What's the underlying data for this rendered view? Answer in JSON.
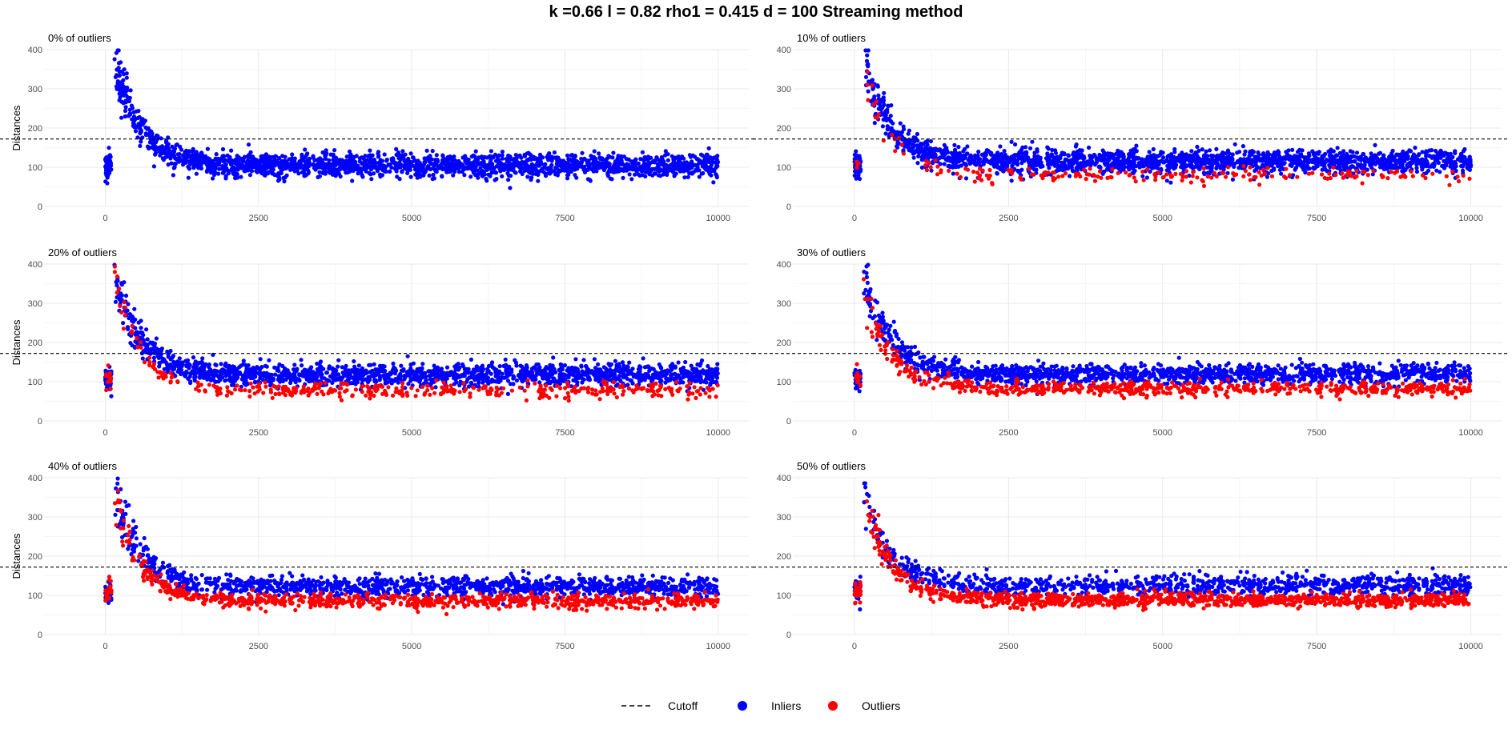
{
  "title": "k =0.66 l = 0.82 rho1 = 0.415 d = 100 Streaming method",
  "legend": {
    "placement": "bottom",
    "items": [
      {
        "label": "Cutoff",
        "style": "dashed-line",
        "color": "#000000"
      },
      {
        "label": "Inliers",
        "style": "point",
        "color": "#0000FF"
      },
      {
        "label": "Outliers",
        "style": "point",
        "color": "#FF0000"
      }
    ]
  },
  "chart_data": [
    {
      "type": "scatter",
      "subtitle": "0% of outliers",
      "outlier_fraction": 0.0,
      "ylabel": "Distances",
      "xlim": [
        -1000,
        10500
      ],
      "ylim": [
        0,
        400
      ],
      "xticks": [
        "0",
        "2500",
        "5000",
        "7500",
        "10000"
      ],
      "yticks": [
        "0",
        "100",
        "200",
        "300",
        "400"
      ],
      "grid": true,
      "cutoff": 172,
      "series": [
        {
          "name": "Inliers",
          "color": "#0000FF",
          "summary": {
            "start_cluster": {
              "x": [
                0,
                100
              ],
              "y_center": 105
            },
            "peak": {
              "x": 200,
              "y": 390
            },
            "decay_to": {
              "x": 1500,
              "y": 125
            },
            "plateau": {
              "x": [
                1500,
                10000
              ],
              "y_center": 105,
              "spread": 30
            }
          }
        },
        {
          "name": "Outliers",
          "color": "#FF0000",
          "summary": null
        }
      ]
    },
    {
      "type": "scatter",
      "subtitle": "10% of outliers",
      "outlier_fraction": 0.1,
      "ylabel": "",
      "xlim": [
        -1000,
        10500
      ],
      "ylim": [
        0,
        400
      ],
      "xticks": [
        "0",
        "2500",
        "5000",
        "7500",
        "10000"
      ],
      "yticks": [
        "0",
        "100",
        "200",
        "300",
        "400"
      ],
      "grid": true,
      "cutoff": 172,
      "series": [
        {
          "name": "Inliers",
          "color": "#0000FF",
          "summary": {
            "start_cluster": {
              "x": [
                0,
                100
              ],
              "y_center": 105
            },
            "peak": {
              "x": 200,
              "y": 390
            },
            "decay_to": {
              "x": 1500,
              "y": 125
            },
            "plateau": {
              "x": [
                1500,
                10000
              ],
              "y_center": 115,
              "spread": 30
            }
          }
        },
        {
          "name": "Outliers",
          "color": "#FF0000",
          "summary": {
            "peak": {
              "x": 200,
              "y": 370
            },
            "plateau": {
              "x": [
                1000,
                10000
              ],
              "y_center": 80,
              "spread": 18
            }
          }
        }
      ]
    },
    {
      "type": "scatter",
      "subtitle": "20% of outliers",
      "outlier_fraction": 0.2,
      "ylabel": "Distances",
      "xlim": [
        -1000,
        10500
      ],
      "ylim": [
        0,
        400
      ],
      "xticks": [
        "0",
        "2500",
        "5000",
        "7500",
        "10000"
      ],
      "yticks": [
        "0",
        "100",
        "200",
        "300",
        "400"
      ],
      "grid": true,
      "cutoff": 172,
      "series": [
        {
          "name": "Inliers",
          "color": "#0000FF",
          "summary": {
            "start_cluster": {
              "x": [
                0,
                100
              ],
              "y_center": 105
            },
            "peak": {
              "x": 200,
              "y": 390
            },
            "decay_to": {
              "x": 1500,
              "y": 130
            },
            "plateau": {
              "x": [
                1500,
                10000
              ],
              "y_center": 118,
              "spread": 28
            }
          }
        },
        {
          "name": "Outliers",
          "color": "#FF0000",
          "summary": {
            "peak": {
              "x": 200,
              "y": 390
            },
            "plateau": {
              "x": [
                1000,
                10000
              ],
              "y_center": 78,
              "spread": 18
            }
          }
        }
      ]
    },
    {
      "type": "scatter",
      "subtitle": "30% of outliers",
      "outlier_fraction": 0.3,
      "ylabel": "",
      "xlim": [
        -1000,
        10500
      ],
      "ylim": [
        0,
        400
      ],
      "xticks": [
        "0",
        "2500",
        "5000",
        "7500",
        "10000"
      ],
      "yticks": [
        "0",
        "100",
        "200",
        "300",
        "400"
      ],
      "grid": true,
      "cutoff": 172,
      "series": [
        {
          "name": "Inliers",
          "color": "#0000FF",
          "summary": {
            "start_cluster": {
              "x": [
                0,
                100
              ],
              "y_center": 110
            },
            "peak": {
              "x": 200,
              "y": 390
            },
            "decay_to": {
              "x": 1500,
              "y": 135
            },
            "plateau": {
              "x": [
                1500,
                10000
              ],
              "y_center": 120,
              "spread": 26
            }
          }
        },
        {
          "name": "Outliers",
          "color": "#FF0000",
          "summary": {
            "peak": {
              "x": 200,
              "y": 350
            },
            "plateau": {
              "x": [
                1000,
                10000
              ],
              "y_center": 82,
              "spread": 18
            }
          }
        }
      ]
    },
    {
      "type": "scatter",
      "subtitle": "40% of outliers",
      "outlier_fraction": 0.4,
      "ylabel": "Distances",
      "xlim": [
        -1000,
        10500
      ],
      "ylim": [
        0,
        400
      ],
      "xticks": [
        "0",
        "2500",
        "5000",
        "7500",
        "10000"
      ],
      "yticks": [
        "0",
        "100",
        "200",
        "300",
        "400"
      ],
      "grid": true,
      "cutoff": 172,
      "series": [
        {
          "name": "Inliers",
          "color": "#0000FF",
          "summary": {
            "start_cluster": {
              "x": [
                0,
                100
              ],
              "y_center": 105
            },
            "peak": {
              "x": 200,
              "y": 390
            },
            "decay_to": {
              "x": 1500,
              "y": 140
            },
            "plateau": {
              "x": [
                1500,
                10000
              ],
              "y_center": 122,
              "spread": 26
            }
          }
        },
        {
          "name": "Outliers",
          "color": "#FF0000",
          "summary": {
            "peak": {
              "x": 200,
              "y": 370
            },
            "plateau": {
              "x": [
                1000,
                10000
              ],
              "y_center": 85,
              "spread": 18
            }
          }
        }
      ]
    },
    {
      "type": "scatter",
      "subtitle": "50% of outliers",
      "outlier_fraction": 0.5,
      "ylabel": "",
      "xlim": [
        -1000,
        10500
      ],
      "ylim": [
        0,
        400
      ],
      "xticks": [
        "0",
        "2500",
        "5000",
        "7500",
        "10000"
      ],
      "yticks": [
        "0",
        "100",
        "200",
        "300",
        "400"
      ],
      "grid": true,
      "cutoff": 172,
      "series": [
        {
          "name": "Inliers",
          "color": "#0000FF",
          "summary": {
            "start_cluster": {
              "x": [
                0,
                100
              ],
              "y_center": 110
            },
            "peak": {
              "x": 200,
              "y": 390
            },
            "decay_to": {
              "x": 1500,
              "y": 140
            },
            "plateau": {
              "x": [
                1500,
                10000
              ],
              "y_center": 125,
              "spread": 26
            }
          }
        },
        {
          "name": "Outliers",
          "color": "#FF0000",
          "summary": {
            "peak": {
              "x": 200,
              "y": 380
            },
            "plateau": {
              "x": [
                1000,
                10000
              ],
              "y_center": 88,
              "spread": 18
            }
          }
        }
      ]
    }
  ]
}
